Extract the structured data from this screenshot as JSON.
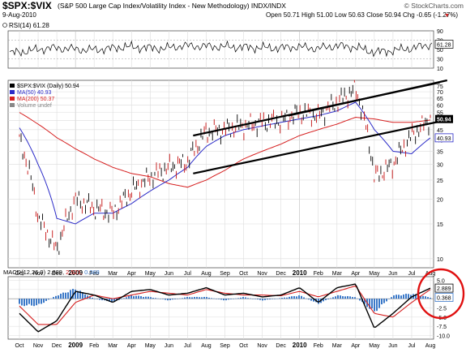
{
  "header": {
    "symbol": "$SPX:$VIX",
    "description": "(S&P 500 Large Cap Index/Volatility Index - New Methodology) INDX/INDX",
    "watermark": "© StockCharts.com",
    "date": "9-Aug-2010",
    "ohlc": "Open 50.71  High 51.00  Low 50.63  Close 50.94  Chg -0.65 (-1.27%)",
    "ohlc_arrow": "▼"
  },
  "rsi_panel": {
    "label": "RSI(14) 61.28",
    "current_tag": "61.28",
    "ticks": [
      "90",
      "70",
      "50",
      "30",
      "10"
    ]
  },
  "price_panel": {
    "legend": [
      {
        "label": "$SPX:$VIX (Daily) 50.94",
        "color": "#000000"
      },
      {
        "label": "MA(50) 40.93",
        "color": "#2b2bc8"
      },
      {
        "label": "MA(200) 50.37",
        "color": "#d62020"
      },
      {
        "label": "Volume undef",
        "color": "#888888"
      }
    ],
    "y_ticks": [
      "75",
      "70",
      "65",
      "60",
      "55",
      "50",
      "45",
      "40",
      "35",
      "30",
      "25",
      "20",
      "15",
      "10"
    ],
    "last_tag": "50.94",
    "ma50_tag": "40.93",
    "x_labels": [
      "Oct",
      "Nov",
      "Dec",
      "2009",
      "Feb",
      "Mar",
      "Apr",
      "May",
      "Jun",
      "Jul",
      "Aug",
      "Sep",
      "Oct",
      "Nov",
      "Dec",
      "2010",
      "Feb",
      "Mar",
      "Apr",
      "May",
      "Jun",
      "Jul",
      "Aug"
    ]
  },
  "macd_panel": {
    "label": "MACD(12,26,9) 2.889, 2.521, 0.368",
    "label_parts": {
      "name": "MACD(12,26,9)",
      "macd": "2.889,",
      "signal": "2.521,",
      "hist": "0.368"
    },
    "ticks": [
      "5.0",
      "2.5",
      "0.0",
      "-2.5",
      "-5.0",
      "-7.5",
      "-10.0"
    ],
    "macd_tag": "2.889",
    "hist_tag": "0.368",
    "x_labels": [
      "Oct",
      "Nov",
      "Dec",
      "2009",
      "Feb",
      "Mar",
      "Apr",
      "May",
      "Jun",
      "Jul",
      "Aug",
      "Sep",
      "Oct",
      "Nov",
      "Dec",
      "2010",
      "Feb",
      "Mar",
      "Apr",
      "May",
      "Jun",
      "Jul",
      "Aug"
    ]
  },
  "colors": {
    "price": "#000000",
    "ma50": "#2b2bc8",
    "ma200": "#d62020",
    "macd": "#000000",
    "signal": "#d62020",
    "histogram": "#3a78c8",
    "grid": "#dcdcdc",
    "annotation": "#e01010"
  },
  "chart_data": [
    {
      "type": "line",
      "title": "RSI(14) 61.28",
      "ylim": [
        10,
        90
      ],
      "y_ticks": [
        90,
        70,
        50,
        30,
        10
      ],
      "x": [
        "Oct",
        "Nov",
        "Dec",
        "2009",
        "Feb",
        "Mar",
        "Apr",
        "May",
        "Jun",
        "Jul",
        "Aug",
        "Sep",
        "Oct",
        "Nov",
        "Dec",
        "2010",
        "Feb",
        "Mar",
        "Apr",
        "May",
        "Jun",
        "Jul",
        "Aug"
      ],
      "series": [
        {
          "name": "RSI(14)",
          "values": [
            42,
            47,
            53,
            52,
            49,
            51,
            56,
            54,
            52,
            58,
            57,
            56,
            55,
            54,
            53,
            56,
            52,
            58,
            55,
            44,
            48,
            53,
            61.28
          ]
        }
      ]
    },
    {
      "type": "line",
      "title": "$SPX:$VIX (Daily) 50.94",
      "ylim": [
        9,
        80
      ],
      "y_ticks": [
        75,
        70,
        65,
        60,
        55,
        50,
        45,
        40,
        35,
        30,
        25,
        20,
        15,
        10
      ],
      "x": [
        "Oct",
        "Nov",
        "Dec",
        "2009",
        "Feb",
        "Mar",
        "Apr",
        "May",
        "Jun",
        "Jul",
        "Aug",
        "Sep",
        "Oct",
        "Nov",
        "Dec",
        "2010",
        "Feb",
        "Mar",
        "Apr",
        "May",
        "Jun",
        "Jul",
        "Aug"
      ],
      "series": [
        {
          "name": "$SPX:$VIX (Daily)",
          "values": [
            40,
            16,
            11,
            20,
            18,
            17,
            22,
            26,
            29,
            31,
            44,
            45,
            47,
            49,
            50,
            55,
            53,
            62,
            72,
            26,
            30,
            42,
            50.94
          ]
        },
        {
          "name": "MA(50)",
          "values": [
            46,
            30,
            16,
            15,
            17,
            17,
            19,
            22,
            25,
            29,
            37,
            42,
            45,
            47,
            49,
            51,
            53,
            56,
            62,
            45,
            35,
            34,
            40.93
          ]
        },
        {
          "name": "MA(200)",
          "values": [
            55,
            48,
            41,
            36,
            32,
            29,
            27,
            26,
            24,
            23,
            25,
            28,
            32,
            35,
            38,
            42,
            45,
            48,
            52,
            51,
            49,
            49,
            50.37
          ]
        }
      ]
    },
    {
      "type": "line",
      "title": "MACD(12,26,9) 2.889, 2.521, 0.368",
      "ylim": [
        -11,
        6
      ],
      "y_ticks": [
        5.0,
        2.5,
        0.0,
        -2.5,
        -5.0,
        -7.5,
        -10.0
      ],
      "x": [
        "Oct",
        "Nov",
        "Dec",
        "2009",
        "Feb",
        "Mar",
        "Apr",
        "May",
        "Jun",
        "Jul",
        "Aug",
        "Sep",
        "Oct",
        "Nov",
        "Dec",
        "2010",
        "Feb",
        "Mar",
        "Apr",
        "May",
        "Jun",
        "Jul",
        "Aug"
      ],
      "series": [
        {
          "name": "MACD",
          "values": [
            -4,
            -9,
            -6,
            2,
            1,
            -1,
            2,
            2.5,
            1,
            1.5,
            3,
            1,
            1.5,
            0.5,
            1,
            3,
            -1,
            3,
            4,
            -8,
            -4,
            0.5,
            2.889
          ]
        },
        {
          "name": "Signal",
          "values": [
            -2,
            -7,
            -7,
            -1,
            1,
            0,
            1,
            2,
            1.5,
            1,
            2.5,
            1.5,
            1,
            1,
            0.8,
            2,
            0.5,
            2,
            3.5,
            -4,
            -5,
            -1,
            2.521
          ]
        },
        {
          "name": "Histogram",
          "values": [
            -2,
            -2,
            1,
            3,
            0,
            -1,
            1,
            0.5,
            -0.5,
            0.5,
            0.5,
            -0.5,
            0.5,
            -0.5,
            0.2,
            1,
            -1.5,
            1,
            0.5,
            -4,
            1,
            1.5,
            0.368
          ]
        }
      ]
    }
  ]
}
